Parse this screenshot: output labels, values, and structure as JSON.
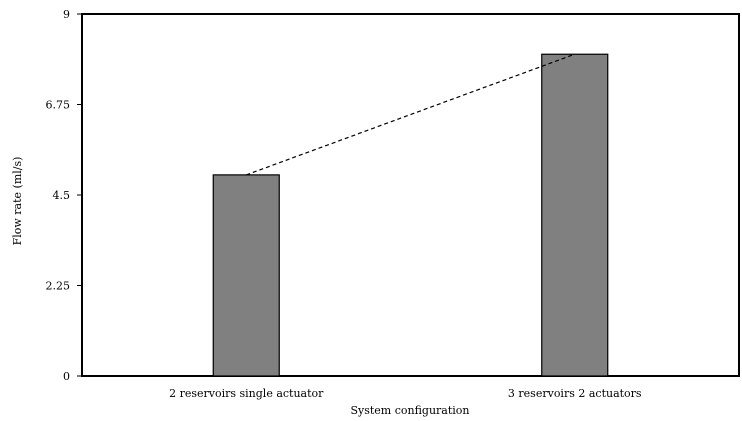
{
  "chart_data": {
    "type": "bar",
    "title": "",
    "xlabel": "System configuration",
    "ylabel": "Flow rate (ml/s)",
    "categories": [
      "2 reservoirs single actuator",
      "3 reservoirs 2 actuators"
    ],
    "values": [
      5.0,
      8.0
    ],
    "ylim": [
      0,
      9
    ],
    "yticks": [
      "0",
      "2.25",
      "4.5",
      "6.75",
      "9"
    ],
    "grid": false,
    "legend": "none",
    "trendline": {
      "style": "dashed",
      "connects": "bar-tops"
    },
    "colors": {
      "bar_fill": "#808080",
      "bar_stroke": "#000000",
      "axis": "#000000",
      "trendline": "#000000"
    }
  }
}
